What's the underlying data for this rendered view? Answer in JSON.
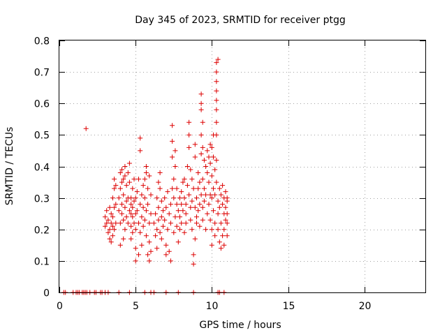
{
  "chart_data": {
    "type": "scatter",
    "title": "Day 345 of 2023, SRMTID for receiver ptgg",
    "xlabel": "GPS time / hours",
    "ylabel": "SRMTID / TECUs",
    "xlim": [
      0,
      24
    ],
    "ylim": [
      0,
      0.8
    ],
    "xticks": [
      0,
      5,
      10,
      15,
      20
    ],
    "yticks": [
      0,
      0.1,
      0.2,
      0.3,
      0.4,
      0.5,
      0.6,
      0.7,
      0.8
    ],
    "xtick_labels": [
      "0",
      "5",
      "10",
      "15",
      "20"
    ],
    "ytick_labels": [
      "0",
      "0.1",
      "0.2",
      "0.3",
      "0.4",
      "0.5",
      "0.6",
      "0.7",
      "0.8"
    ],
    "grid": true,
    "marker": "+",
    "color": "#dd0000",
    "series": [
      {
        "name": "SRMTID",
        "points": [
          [
            0.3,
            0
          ],
          [
            0.4,
            0
          ],
          [
            0.9,
            0
          ],
          [
            1.1,
            0
          ],
          [
            1.2,
            0
          ],
          [
            1.3,
            0
          ],
          [
            1.5,
            0
          ],
          [
            1.6,
            0
          ],
          [
            1.7,
            0
          ],
          [
            1.8,
            0
          ],
          [
            2.0,
            0
          ],
          [
            2.3,
            0
          ],
          [
            2.4,
            0
          ],
          [
            2.7,
            0
          ],
          [
            2.8,
            0
          ],
          [
            3.0,
            0
          ],
          [
            3.2,
            0
          ],
          [
            3.9,
            0
          ],
          [
            4.6,
            0
          ],
          [
            5.6,
            0
          ],
          [
            6.0,
            0
          ],
          [
            6.2,
            0
          ],
          [
            7.0,
            0
          ],
          [
            7.8,
            0
          ],
          [
            8.8,
            0
          ],
          [
            10.4,
            0
          ],
          [
            10.5,
            0
          ],
          [
            10.8,
            0
          ],
          [
            1.75,
            0.52
          ],
          [
            3.0,
            0.21
          ],
          [
            3.0,
            0.24
          ],
          [
            3.1,
            0.22
          ],
          [
            3.1,
            0.26
          ],
          [
            3.2,
            0.19
          ],
          [
            3.2,
            0.23
          ],
          [
            3.3,
            0.27
          ],
          [
            3.3,
            0.17
          ],
          [
            3.3,
            0.2
          ],
          [
            3.4,
            0.16
          ],
          [
            3.4,
            0.22
          ],
          [
            3.4,
            0.25
          ],
          [
            3.5,
            0.18
          ],
          [
            3.5,
            0.21
          ],
          [
            3.5,
            0.3
          ],
          [
            3.5,
            0.24
          ],
          [
            3.6,
            0.33
          ],
          [
            3.6,
            0.36
          ],
          [
            3.6,
            0.2
          ],
          [
            3.6,
            0.27
          ],
          [
            3.7,
            0.22
          ],
          [
            3.7,
            0.28
          ],
          [
            3.7,
            0.34
          ],
          [
            3.9,
            0.26
          ],
          [
            3.9,
            0.3
          ],
          [
            4.0,
            0.38
          ],
          [
            4.0,
            0.33
          ],
          [
            4.0,
            0.22
          ],
          [
            4.0,
            0.15
          ],
          [
            4.1,
            0.25
          ],
          [
            4.1,
            0.28
          ],
          [
            4.1,
            0.35
          ],
          [
            4.1,
            0.39
          ],
          [
            4.2,
            0.17
          ],
          [
            4.2,
            0.23
          ],
          [
            4.2,
            0.31
          ],
          [
            4.2,
            0.36
          ],
          [
            4.3,
            0.2
          ],
          [
            4.3,
            0.27
          ],
          [
            4.3,
            0.37
          ],
          [
            4.3,
            0.4
          ],
          [
            4.4,
            0.24
          ],
          [
            4.4,
            0.29
          ],
          [
            4.4,
            0.34
          ],
          [
            4.5,
            0.22
          ],
          [
            4.5,
            0.3
          ],
          [
            4.5,
            0.38
          ],
          [
            4.6,
            0.26
          ],
          [
            4.6,
            0.35
          ],
          [
            4.6,
            0.41
          ],
          [
            4.7,
            0.25
          ],
          [
            4.7,
            0.28
          ],
          [
            4.7,
            0.3
          ],
          [
            4.7,
            0.21
          ],
          [
            4.7,
            0.17
          ],
          [
            4.8,
            0.27
          ],
          [
            4.8,
            0.33
          ],
          [
            4.8,
            0.24
          ],
          [
            4.8,
            0.19
          ],
          [
            4.9,
            0.29
          ],
          [
            4.9,
            0.22
          ],
          [
            4.9,
            0.36
          ],
          [
            5.0,
            0.25
          ],
          [
            5.0,
            0.3
          ],
          [
            5.0,
            0.2
          ],
          [
            5.0,
            0.14
          ],
          [
            5.0,
            0.1
          ],
          [
            5.1,
            0.26
          ],
          [
            5.1,
            0.32
          ],
          [
            5.2,
            0.22
          ],
          [
            5.2,
            0.36
          ],
          [
            5.2,
            0.12
          ],
          [
            5.3,
            0.45
          ],
          [
            5.3,
            0.49
          ],
          [
            5.3,
            0.28
          ],
          [
            5.3,
            0.19
          ],
          [
            5.4,
            0.15
          ],
          [
            5.4,
            0.24
          ],
          [
            5.4,
            0.31
          ],
          [
            5.5,
            0.34
          ],
          [
            5.5,
            0.27
          ],
          [
            5.5,
            0.21
          ],
          [
            5.6,
            0.36
          ],
          [
            5.6,
            0.3
          ],
          [
            5.6,
            0.23
          ],
          [
            5.7,
            0.38
          ],
          [
            5.7,
            0.4
          ],
          [
            5.7,
            0.26
          ],
          [
            5.7,
            0.18
          ],
          [
            5.8,
            0.12
          ],
          [
            5.8,
            0.33
          ],
          [
            5.8,
            0.28
          ],
          [
            5.9,
            0.1
          ],
          [
            5.9,
            0.16
          ],
          [
            5.9,
            0.37
          ],
          [
            5.9,
            0.22
          ],
          [
            6.0,
            0.13
          ],
          [
            6.0,
            0.25
          ],
          [
            6.0,
            0.31
          ],
          [
            6.2,
            0.22
          ],
          [
            6.3,
            0.18
          ],
          [
            6.3,
            0.25
          ],
          [
            6.4,
            0.3
          ],
          [
            6.4,
            0.2
          ],
          [
            6.4,
            0.14
          ],
          [
            6.5,
            0.35
          ],
          [
            6.5,
            0.27
          ],
          [
            6.5,
            0.23
          ],
          [
            6.6,
            0.38
          ],
          [
            6.6,
            0.33
          ],
          [
            6.6,
            0.19
          ],
          [
            6.7,
            0.29
          ],
          [
            6.7,
            0.24
          ],
          [
            6.7,
            0.17
          ],
          [
            6.8,
            0.26
          ],
          [
            6.8,
            0.21
          ],
          [
            6.9,
            0.3
          ],
          [
            6.9,
            0.23
          ],
          [
            7.0,
            0.27
          ],
          [
            7.0,
            0.15
          ],
          [
            7.0,
            0.12
          ],
          [
            7.1,
            0.2
          ],
          [
            7.1,
            0.32
          ],
          [
            7.2,
            0.25
          ],
          [
            7.2,
            0.13
          ],
          [
            7.3,
            0.28
          ],
          [
            7.3,
            0.22
          ],
          [
            7.3,
            0.1
          ],
          [
            7.4,
            0.43
          ],
          [
            7.4,
            0.48
          ],
          [
            7.4,
            0.53
          ],
          [
            7.4,
            0.33
          ],
          [
            7.5,
            0.36
          ],
          [
            7.5,
            0.3
          ],
          [
            7.5,
            0.19
          ],
          [
            7.6,
            0.4
          ],
          [
            7.6,
            0.45
          ],
          [
            7.6,
            0.24
          ],
          [
            7.7,
            0.33
          ],
          [
            7.7,
            0.21
          ],
          [
            7.7,
            0.28
          ],
          [
            7.8,
            0.26
          ],
          [
            7.8,
            0.16
          ],
          [
            7.9,
            0.3
          ],
          [
            7.9,
            0.2
          ],
          [
            7.9,
            0.24
          ],
          [
            8.0,
            0.28
          ],
          [
            8.0,
            0.22
          ],
          [
            8.0,
            0.32
          ],
          [
            8.1,
            0.35
          ],
          [
            8.1,
            0.26
          ],
          [
            8.2,
            0.19
          ],
          [
            8.2,
            0.3
          ],
          [
            8.2,
            0.36
          ],
          [
            8.3,
            0.25
          ],
          [
            8.3,
            0.22
          ],
          [
            8.3,
            0.28
          ],
          [
            8.4,
            0.4
          ],
          [
            8.4,
            0.34
          ],
          [
            8.5,
            0.46
          ],
          [
            8.5,
            0.5
          ],
          [
            8.5,
            0.54
          ],
          [
            8.5,
            0.31
          ],
          [
            8.6,
            0.39
          ],
          [
            8.6,
            0.27
          ],
          [
            8.6,
            0.23
          ],
          [
            8.7,
            0.36
          ],
          [
            8.7,
            0.29
          ],
          [
            8.7,
            0.2
          ],
          [
            8.8,
            0.12
          ],
          [
            8.8,
            0.09
          ],
          [
            8.8,
            0.33
          ],
          [
            8.9,
            0.27
          ],
          [
            8.9,
            0.47
          ],
          [
            8.9,
            0.43
          ],
          [
            8.9,
            0.17
          ],
          [
            9.0,
            0.3
          ],
          [
            9.0,
            0.24
          ],
          [
            9.0,
            0.22
          ],
          [
            9.1,
            0.38
          ],
          [
            9.1,
            0.33
          ],
          [
            9.1,
            0.26
          ],
          [
            9.2,
            0.28
          ],
          [
            9.2,
            0.21
          ],
          [
            9.2,
            0.35
          ],
          [
            9.3,
            0.6
          ],
          [
            9.3,
            0.63
          ],
          [
            9.3,
            0.58
          ],
          [
            9.3,
            0.5
          ],
          [
            9.3,
            0.44
          ],
          [
            9.3,
            0.31
          ],
          [
            9.4,
            0.54
          ],
          [
            9.4,
            0.46
          ],
          [
            9.4,
            0.36
          ],
          [
            9.4,
            0.27
          ],
          [
            9.4,
            0.23
          ],
          [
            9.5,
            0.42
          ],
          [
            9.5,
            0.33
          ],
          [
            9.5,
            0.29
          ],
          [
            9.6,
            0.4
          ],
          [
            9.6,
            0.31
          ],
          [
            9.6,
            0.2
          ],
          [
            9.7,
            0.45
          ],
          [
            9.7,
            0.38
          ],
          [
            9.7,
            0.25
          ],
          [
            9.8,
            0.43
          ],
          [
            9.8,
            0.35
          ],
          [
            9.8,
            0.28
          ],
          [
            9.9,
            0.47
          ],
          [
            9.9,
            0.41
          ],
          [
            9.9,
            0.31
          ],
          [
            9.9,
            0.23
          ],
          [
            10.0,
            0.46
          ],
          [
            10.0,
            0.37
          ],
          [
            10.0,
            0.3
          ],
          [
            10.0,
            0.2
          ],
          [
            10.0,
            0.15
          ],
          [
            10.1,
            0.5
          ],
          [
            10.1,
            0.43
          ],
          [
            10.1,
            0.33
          ],
          [
            10.1,
            0.26
          ],
          [
            10.2,
            0.39
          ],
          [
            10.2,
            0.31
          ],
          [
            10.2,
            0.22
          ],
          [
            10.2,
            0.18
          ],
          [
            10.3,
            0.73
          ],
          [
            10.3,
            0.7
          ],
          [
            10.3,
            0.67
          ],
          [
            10.3,
            0.64
          ],
          [
            10.3,
            0.61
          ],
          [
            10.3,
            0.58
          ],
          [
            10.3,
            0.54
          ],
          [
            10.3,
            0.5
          ],
          [
            10.3,
            0.42
          ],
          [
            10.3,
            0.35
          ],
          [
            10.4,
            0.74
          ],
          [
            10.4,
            0.29
          ],
          [
            10.4,
            0.25
          ],
          [
            10.4,
            0.2
          ],
          [
            10.5,
            0.33
          ],
          [
            10.5,
            0.27
          ],
          [
            10.5,
            0.16
          ],
          [
            10.6,
            0.31
          ],
          [
            10.6,
            0.22
          ],
          [
            10.6,
            0.14
          ],
          [
            10.7,
            0.28
          ],
          [
            10.7,
            0.34
          ],
          [
            10.7,
            0.18
          ],
          [
            10.8,
            0.25
          ],
          [
            10.8,
            0.3
          ],
          [
            10.8,
            0.2
          ],
          [
            10.8,
            0.15
          ],
          [
            10.9,
            0.32
          ],
          [
            10.9,
            0.23
          ],
          [
            10.9,
            0.27
          ],
          [
            11.0,
            0.29
          ],
          [
            11.0,
            0.3
          ],
          [
            11.0,
            0.25
          ],
          [
            11.0,
            0.22
          ],
          [
            11.0,
            0.18
          ]
        ]
      }
    ]
  }
}
